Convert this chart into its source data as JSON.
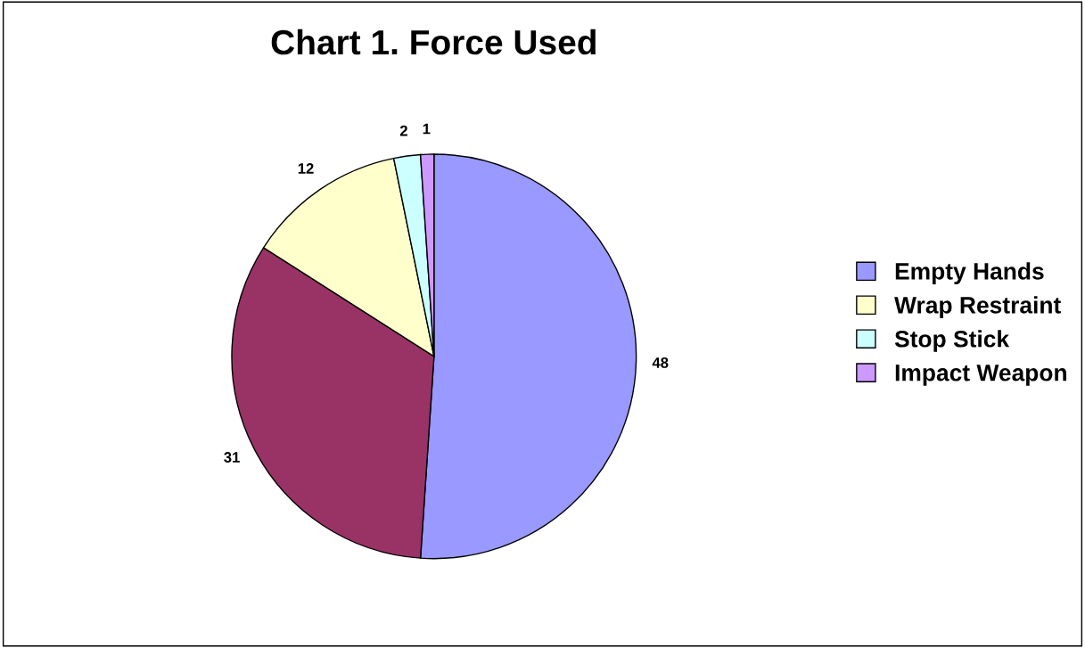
{
  "chart_data": {
    "type": "pie",
    "title": "Chart 1. Force Used",
    "categories": [
      "Empty Hands",
      null,
      "Wrap Restraint",
      "Stop Stick",
      "Impact Weapon"
    ],
    "values": [
      48,
      31,
      12,
      2,
      1
    ],
    "colors": [
      "#9999ff",
      "#993366",
      "#ffffcc",
      "#ccffff",
      "#cc99ff"
    ],
    "data_labels": true,
    "legend": "right"
  }
}
